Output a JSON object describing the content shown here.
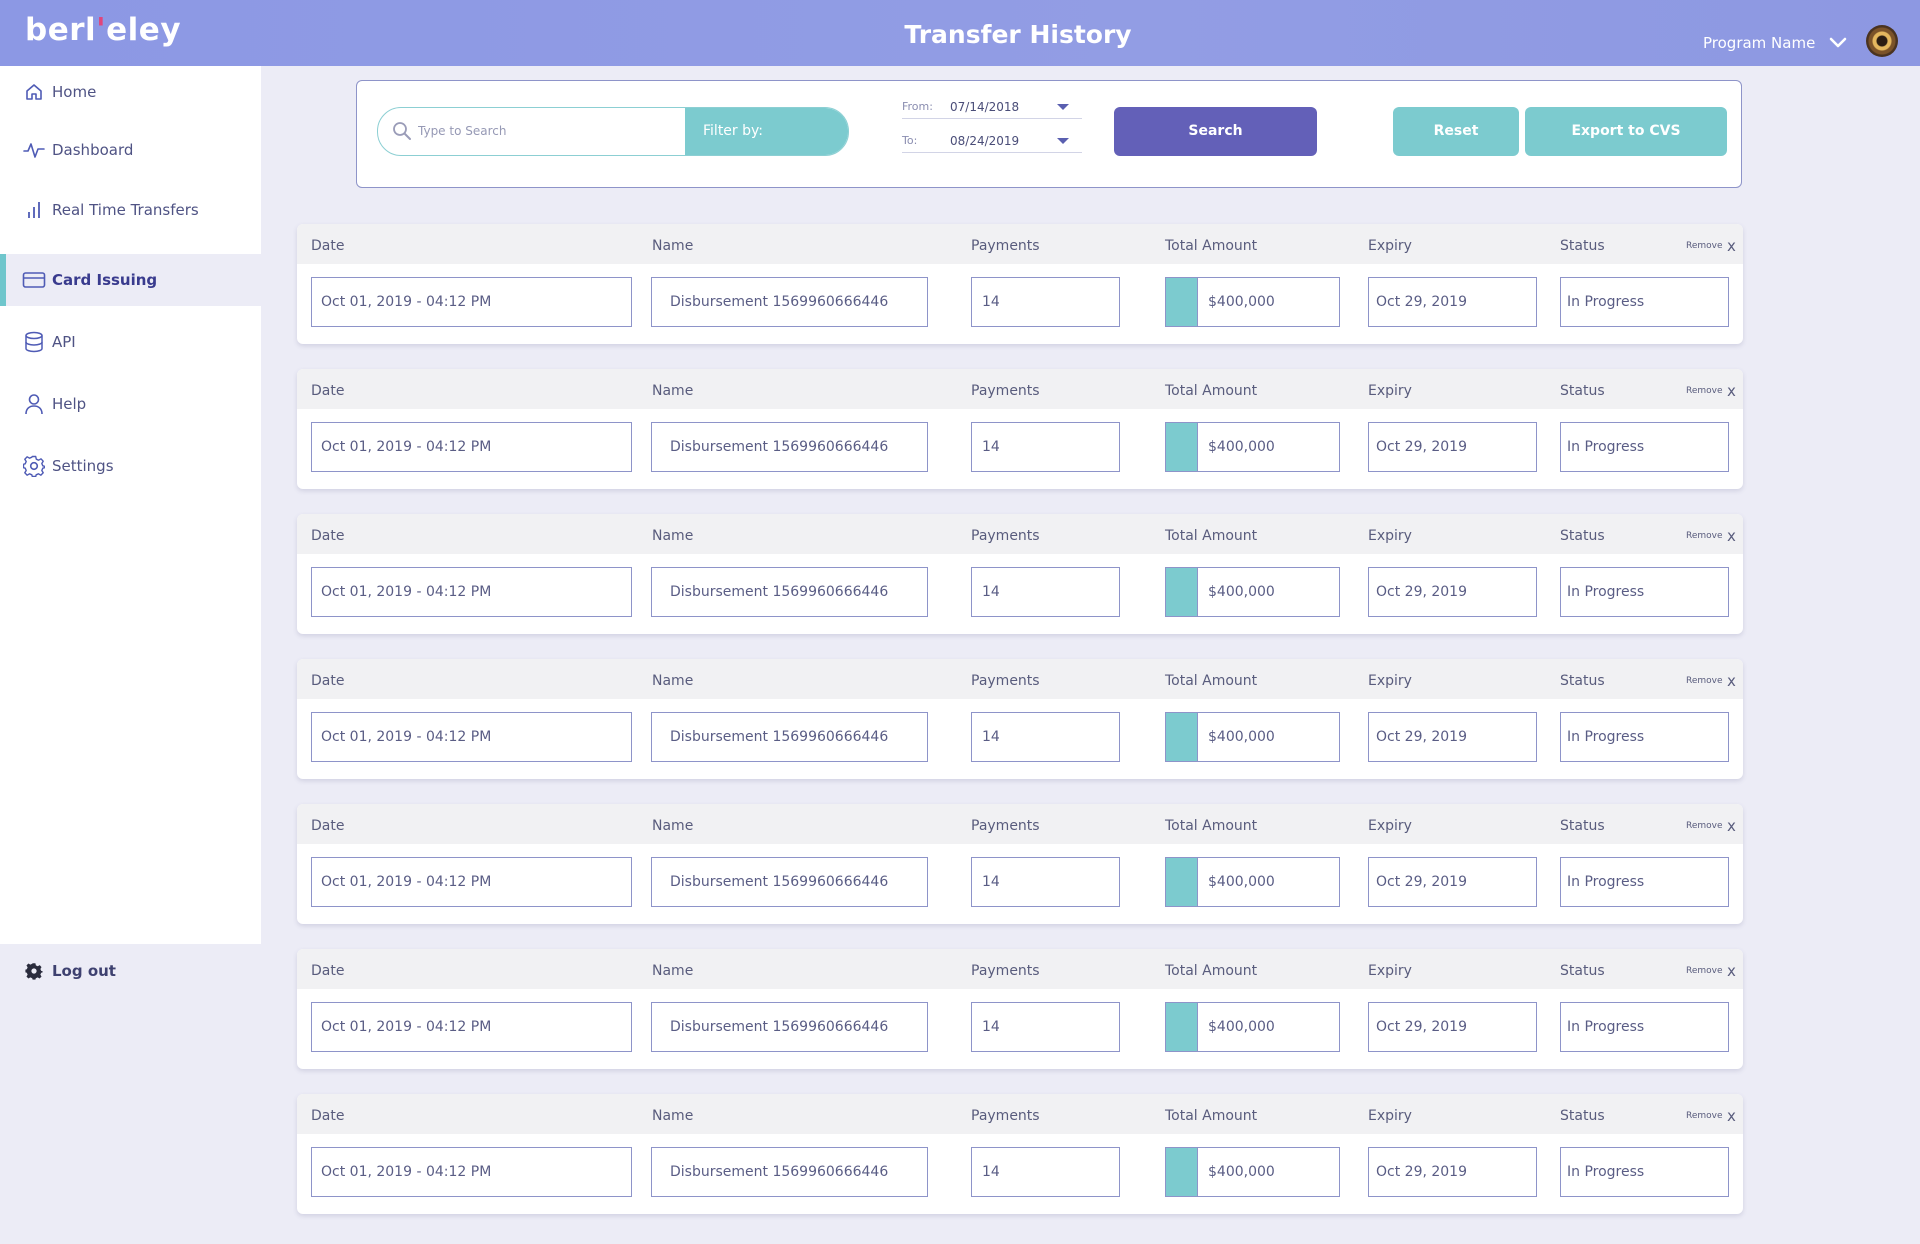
{
  "header": {
    "logo_text_a": "berl",
    "logo_text_b": "eley",
    "title": "Transfer History",
    "program_label": "Program Name"
  },
  "sidebar": {
    "items": [
      {
        "label": "Home",
        "icon": "home-icon"
      },
      {
        "label": "Dashboard",
        "icon": "pulse-icon"
      },
      {
        "label": "Real Time Transfers",
        "icon": "bar-chart-icon"
      },
      {
        "label": "Card Issuing",
        "icon": "card-icon",
        "active": true
      },
      {
        "label": "API",
        "icon": "database-icon"
      },
      {
        "label": "Help",
        "icon": "user-icon"
      },
      {
        "label": "Settings",
        "icon": "gear-icon"
      }
    ],
    "logout_label": "Log out"
  },
  "search": {
    "placeholder": "Type to Search",
    "filter_label": "Filter by:",
    "from_label": "From:",
    "from_value": "07/14/2018",
    "to_label": "To:",
    "to_value": "08/24/2019",
    "search_label": "Search",
    "reset_label": "Reset",
    "export_label": "Export to CVS"
  },
  "columns": {
    "date": "Date",
    "name": "Name",
    "payments": "Payments",
    "total": "Total Amount",
    "expiry": "Expiry",
    "status": "Status",
    "remove": "Remove",
    "remove_x": "x"
  },
  "rows": [
    {
      "date": "Oct 01, 2019 - 04:12 PM",
      "name": "Disbursement 1569960666446",
      "payments": "14",
      "total": "$400,000",
      "expiry": "Oct 29, 2019",
      "status": "In Progress"
    },
    {
      "date": "Oct 01, 2019 - 04:12 PM",
      "name": "Disbursement 1569960666446",
      "payments": "14",
      "total": "$400,000",
      "expiry": "Oct 29, 2019",
      "status": "In Progress"
    },
    {
      "date": "Oct 01, 2019 - 04:12 PM",
      "name": "Disbursement 1569960666446",
      "payments": "14",
      "total": "$400,000",
      "expiry": "Oct 29, 2019",
      "status": "In Progress"
    },
    {
      "date": "Oct 01, 2019 - 04:12 PM",
      "name": "Disbursement 1569960666446",
      "payments": "14",
      "total": "$400,000",
      "expiry": "Oct 29, 2019",
      "status": "In Progress"
    },
    {
      "date": "Oct 01, 2019 - 04:12 PM",
      "name": "Disbursement 1569960666446",
      "payments": "14",
      "total": "$400,000",
      "expiry": "Oct 29, 2019",
      "status": "In Progress"
    },
    {
      "date": "Oct 01, 2019 - 04:12 PM",
      "name": "Disbursement 1569960666446",
      "payments": "14",
      "total": "$400,000",
      "expiry": "Oct 29, 2019",
      "status": "In Progress"
    },
    {
      "date": "Oct 01, 2019 - 04:12 PM",
      "name": "Disbursement 1569960666446",
      "payments": "14",
      "total": "$400,000",
      "expiry": "Oct 29, 2019",
      "status": "In Progress"
    }
  ],
  "colors": {
    "header": "#8c98e4",
    "accent_teal": "#7ccbcf",
    "accent_purple": "#6360b8",
    "border": "#8e94c9"
  }
}
